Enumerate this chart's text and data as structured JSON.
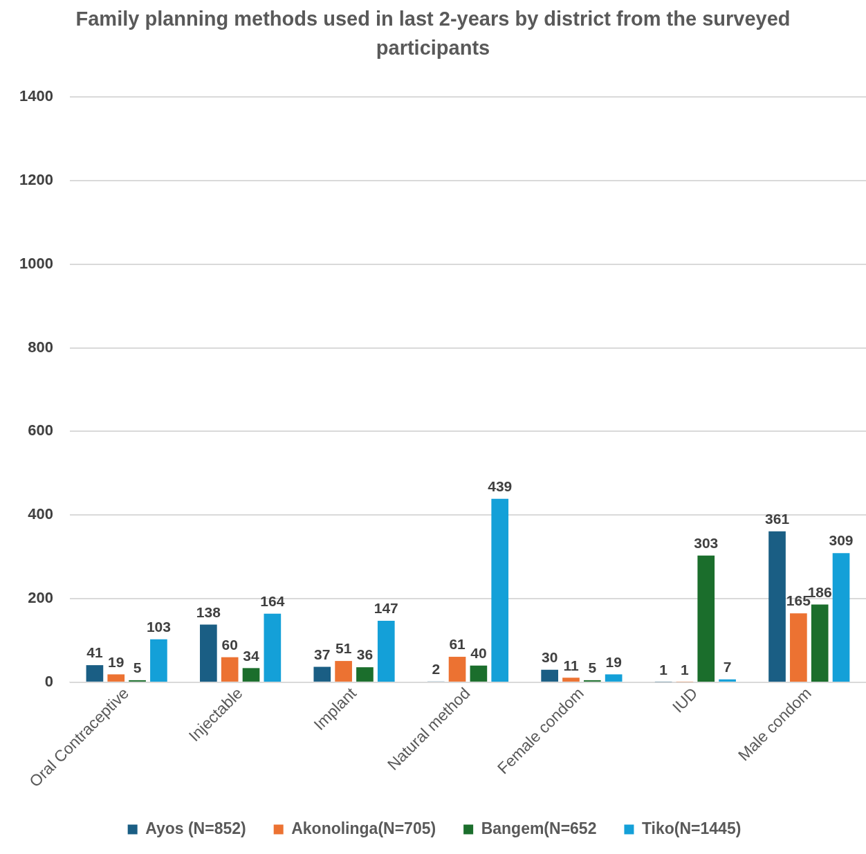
{
  "chart_data": {
    "type": "bar",
    "title": "Family planning methods used in last 2-years by district from the surveyed participants",
    "categories": [
      "Oral Contraceptive",
      "Injectable",
      "Implant",
      "Natural method",
      "Female condom",
      "IUD",
      "Male condom"
    ],
    "series": [
      {
        "name": "Ayos (N=852)",
        "color": "#1a5e84",
        "values": [
          41,
          138,
          37,
          2,
          30,
          1,
          361
        ]
      },
      {
        "name": "Akonolinga(N=705)",
        "color": "#ec7232",
        "values": [
          19,
          60,
          51,
          61,
          11,
          1,
          165
        ]
      },
      {
        "name": "Bangem(N=652",
        "color": "#1b6e2c",
        "values": [
          5,
          34,
          36,
          40,
          5,
          303,
          186
        ]
      },
      {
        "name": "Tiko(N=1445)",
        "color": "#14a0d8",
        "values": [
          103,
          164,
          147,
          439,
          19,
          7,
          309
        ]
      }
    ],
    "ylim": [
      0,
      1400
    ],
    "yticks": [
      0,
      200,
      400,
      600,
      800,
      1000,
      1200,
      1400
    ],
    "grid": "y",
    "legend": "bottom",
    "data_labels": true
  }
}
